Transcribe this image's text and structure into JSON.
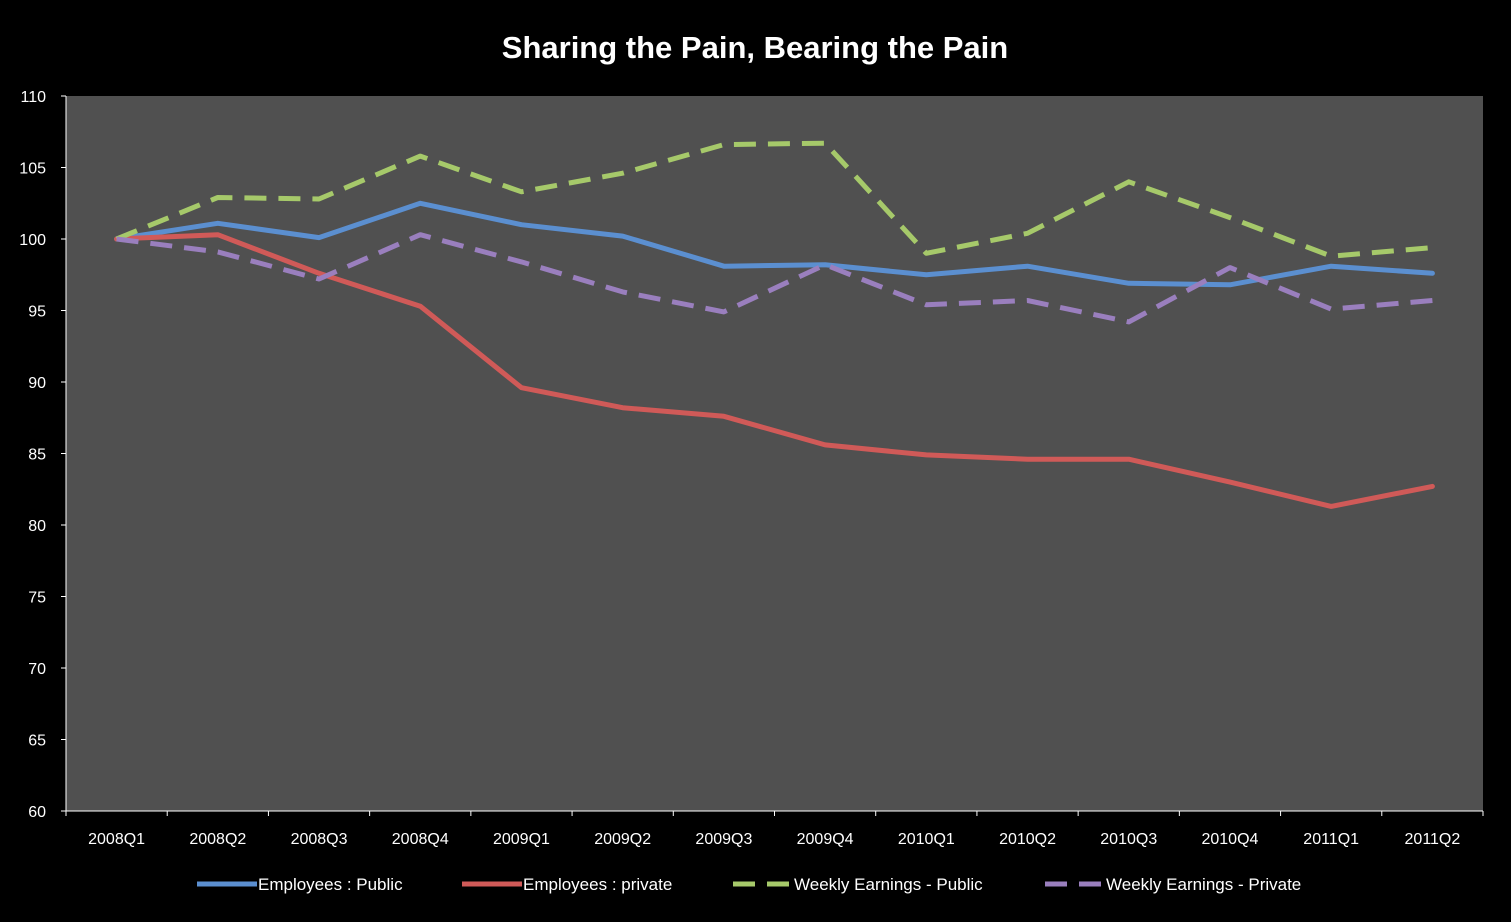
{
  "chart_data": {
    "type": "line",
    "title": "Sharing the Pain, Bearing the Pain",
    "xlabel": "",
    "ylabel": "",
    "ylim": [
      60,
      110
    ],
    "yticks": [
      60,
      65,
      70,
      75,
      80,
      85,
      90,
      95,
      100,
      105,
      110
    ],
    "grid": false,
    "legend_position": "bottom",
    "plot_background": "#505050",
    "categories": [
      "2008Q1",
      "2008Q2",
      "2008Q3",
      "2008Q4",
      "2009Q1",
      "2009Q2",
      "2009Q3",
      "2009Q4",
      "2010Q1",
      "2010Q2",
      "2010Q3",
      "2010Q4",
      "2011Q1",
      "2011Q2"
    ],
    "series": [
      {
        "name": "Employees : Public",
        "color": "#5b8fd0",
        "dashed": false,
        "values": [
          100,
          101.1,
          100.1,
          102.5,
          101.0,
          100.2,
          98.1,
          98.2,
          97.5,
          98.1,
          96.9,
          96.8,
          98.1,
          97.6
        ]
      },
      {
        "name": "Employees : private",
        "color": "#d05a58",
        "dashed": false,
        "values": [
          100,
          100.3,
          97.6,
          95.3,
          89.6,
          88.2,
          87.6,
          85.6,
          84.9,
          84.6,
          84.6,
          83.0,
          81.3,
          82.7
        ]
      },
      {
        "name": "Weekly Earnings - Public",
        "color": "#a6c96a",
        "dashed": true,
        "values": [
          100,
          102.9,
          102.8,
          105.8,
          103.3,
          104.6,
          106.6,
          106.7,
          99.0,
          100.4,
          104.0,
          101.5,
          98.8,
          99.4
        ]
      },
      {
        "name": "Weekly Earnings - Private",
        "color": "#9a7fbe",
        "dashed": true,
        "values": [
          100,
          99.1,
          97.2,
          100.3,
          98.4,
          96.3,
          94.9,
          98.2,
          95.4,
          95.7,
          94.2,
          98.0,
          95.1,
          95.7
        ]
      }
    ]
  }
}
